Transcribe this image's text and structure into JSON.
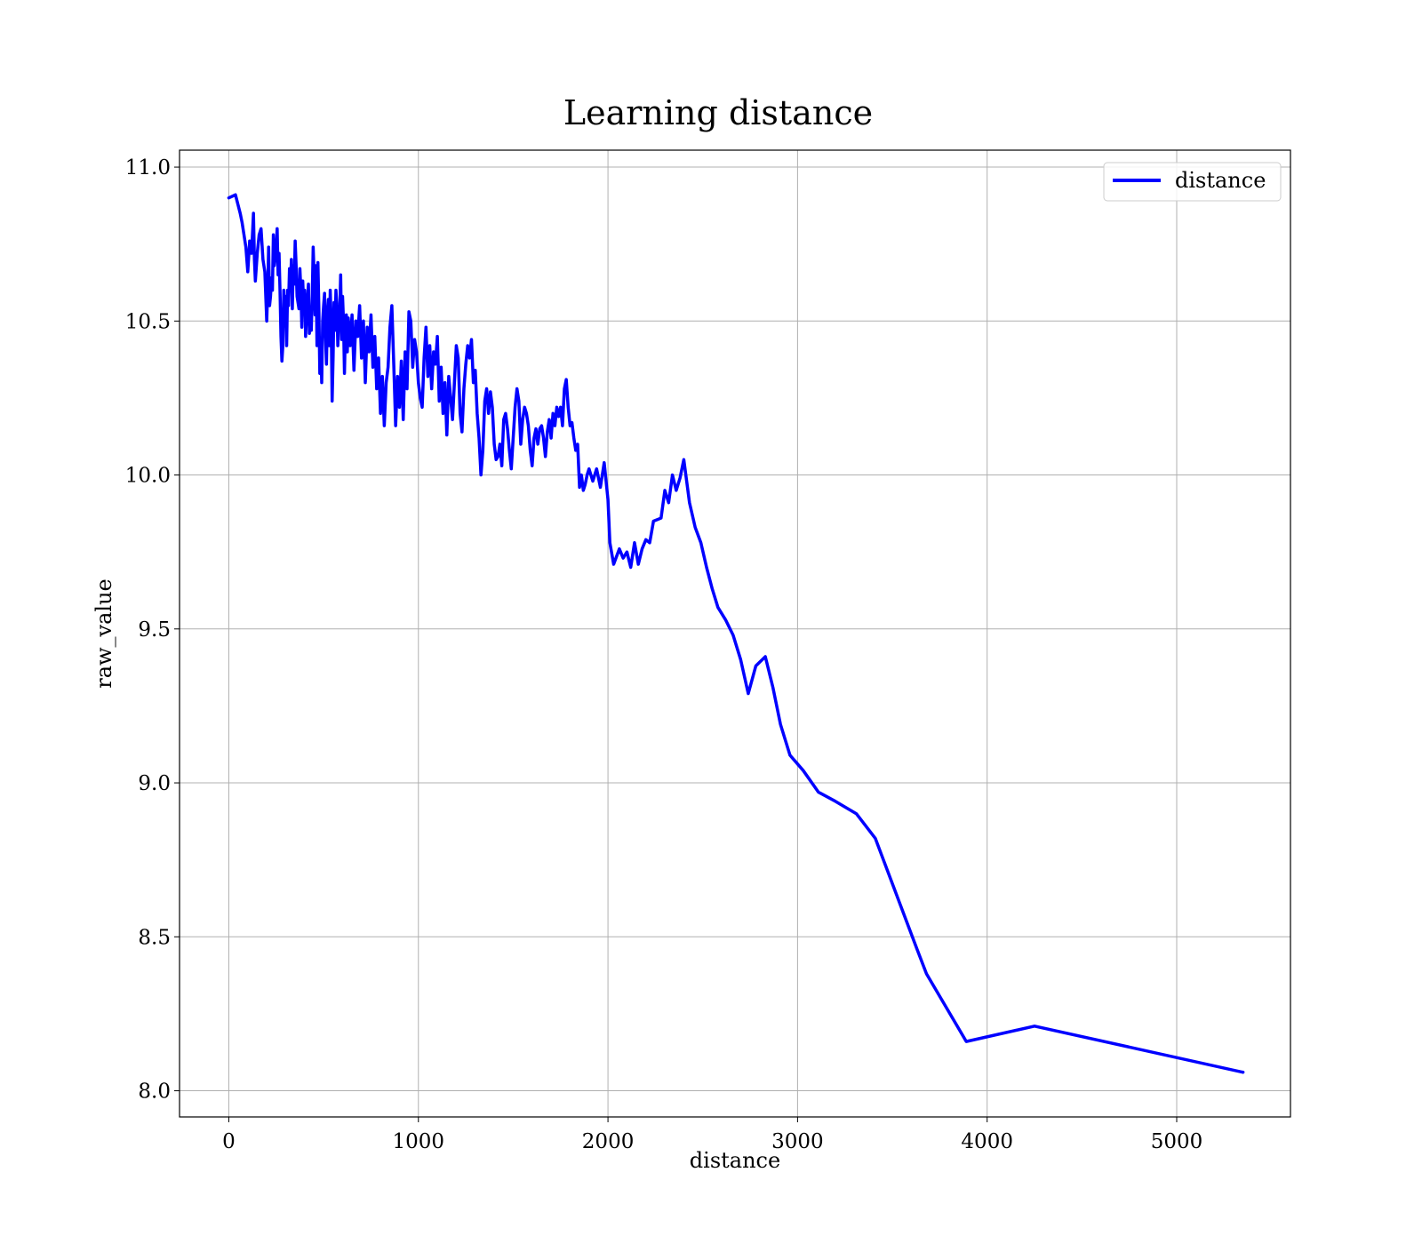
{
  "chart_data": {
    "type": "line",
    "title": "Learning distance",
    "xlabel": "distance",
    "ylabel": "raw_value",
    "xlim": [
      -260,
      5600
    ],
    "ylim": [
      7.915,
      11.055
    ],
    "xticks": [
      0,
      1000,
      2000,
      3000,
      4000,
      5000
    ],
    "xtick_labels": [
      "0",
      "1000",
      "2000",
      "3000",
      "4000",
      "5000"
    ],
    "yticks": [
      8.0,
      8.5,
      9.0,
      9.5,
      10.0,
      10.5,
      11.0
    ],
    "ytick_labels": [
      "8.0",
      "8.5",
      "9.0",
      "9.5",
      "10.0",
      "10.5",
      "11.0"
    ],
    "grid": true,
    "legend_position": "top-right",
    "series": [
      {
        "name": "distance",
        "color": "#0000ff",
        "x": [
          0,
          35,
          60,
          70,
          80,
          90,
          100,
          110,
          120,
          130,
          135,
          140,
          150,
          160,
          170,
          180,
          190,
          200,
          205,
          210,
          215,
          220,
          225,
          230,
          235,
          240,
          250,
          255,
          260,
          265,
          270,
          275,
          280,
          285,
          290,
          295,
          300,
          305,
          310,
          315,
          320,
          325,
          330,
          335,
          340,
          345,
          350,
          355,
          360,
          365,
          370,
          375,
          380,
          385,
          390,
          395,
          400,
          405,
          410,
          420,
          425,
          430,
          435,
          440,
          445,
          450,
          455,
          460,
          465,
          470,
          475,
          480,
          485,
          490,
          495,
          500,
          505,
          510,
          515,
          520,
          525,
          530,
          535,
          540,
          545,
          550,
          555,
          560,
          565,
          570,
          575,
          580,
          585,
          590,
          595,
          600,
          605,
          610,
          615,
          620,
          625,
          630,
          640,
          650,
          660,
          670,
          680,
          690,
          700,
          710,
          720,
          730,
          740,
          750,
          760,
          770,
          780,
          790,
          800,
          810,
          820,
          830,
          840,
          850,
          860,
          870,
          880,
          890,
          900,
          910,
          920,
          930,
          940,
          950,
          960,
          970,
          980,
          990,
          1000,
          1010,
          1020,
          1030,
          1040,
          1050,
          1060,
          1070,
          1080,
          1090,
          1100,
          1110,
          1120,
          1130,
          1140,
          1150,
          1160,
          1170,
          1180,
          1190,
          1200,
          1210,
          1220,
          1230,
          1240,
          1250,
          1260,
          1270,
          1280,
          1290,
          1300,
          1310,
          1320,
          1330,
          1340,
          1350,
          1360,
          1370,
          1380,
          1390,
          1400,
          1410,
          1420,
          1430,
          1440,
          1450,
          1460,
          1470,
          1480,
          1490,
          1500,
          1510,
          1520,
          1530,
          1540,
          1550,
          1560,
          1570,
          1580,
          1590,
          1600,
          1610,
          1620,
          1630,
          1640,
          1650,
          1660,
          1670,
          1680,
          1690,
          1700,
          1710,
          1720,
          1730,
          1740,
          1750,
          1760,
          1770,
          1780,
          1790,
          1800,
          1810,
          1820,
          1830,
          1840,
          1850,
          1860,
          1870,
          1880,
          1890,
          1900,
          1920,
          1940,
          1960,
          1980,
          2000,
          2010,
          2030,
          2060,
          2080,
          2100,
          2120,
          2140,
          2160,
          2180,
          2200,
          2220,
          2240,
          2280,
          2300,
          2320,
          2340,
          2360,
          2380,
          2400,
          2430,
          2460,
          2490,
          2520,
          2550,
          2580,
          2620,
          2660,
          2700,
          2740,
          2780,
          2830,
          2870,
          2910,
          2960,
          3030,
          3110,
          3200,
          3310,
          3410,
          3520,
          3630,
          3680,
          3890,
          4250,
          5350
        ],
        "y": [
          10.9,
          10.91,
          10.85,
          10.82,
          10.78,
          10.74,
          10.66,
          10.76,
          10.72,
          10.85,
          10.7,
          10.63,
          10.72,
          10.78,
          10.8,
          10.7,
          10.66,
          10.5,
          10.6,
          10.74,
          10.55,
          10.58,
          10.64,
          10.6,
          10.78,
          10.68,
          10.74,
          10.8,
          10.65,
          10.72,
          10.6,
          10.45,
          10.37,
          10.42,
          10.6,
          10.5,
          10.58,
          10.42,
          10.6,
          10.55,
          10.67,
          10.6,
          10.7,
          10.54,
          10.68,
          10.62,
          10.76,
          10.68,
          10.58,
          10.56,
          10.54,
          10.67,
          10.6,
          10.48,
          10.63,
          10.55,
          10.6,
          10.45,
          10.52,
          10.62,
          10.46,
          10.54,
          10.47,
          10.58,
          10.74,
          10.65,
          10.52,
          10.68,
          10.42,
          10.69,
          10.54,
          10.33,
          10.44,
          10.3,
          10.5,
          10.55,
          10.59,
          10.45,
          10.36,
          10.52,
          10.57,
          10.42,
          10.6,
          10.5,
          10.24,
          10.38,
          10.56,
          10.47,
          10.6,
          10.55,
          10.42,
          10.5,
          10.53,
          10.65,
          10.44,
          10.58,
          10.5,
          10.33,
          10.48,
          10.52,
          10.4,
          10.51,
          10.42,
          10.52,
          10.34,
          10.5,
          10.45,
          10.55,
          10.38,
          10.5,
          10.3,
          10.48,
          10.4,
          10.52,
          10.35,
          10.45,
          10.28,
          10.38,
          10.2,
          10.32,
          10.16,
          10.3,
          10.35,
          10.48,
          10.55,
          10.36,
          10.16,
          10.32,
          10.22,
          10.37,
          10.18,
          10.4,
          10.28,
          10.53,
          10.5,
          10.35,
          10.44,
          10.4,
          10.3,
          10.25,
          10.22,
          10.38,
          10.48,
          10.32,
          10.42,
          10.28,
          10.4,
          10.36,
          10.45,
          10.24,
          10.35,
          10.2,
          10.3,
          10.13,
          10.32,
          10.25,
          10.18,
          10.3,
          10.42,
          10.38,
          10.2,
          10.14,
          10.28,
          10.36,
          10.42,
          10.38,
          10.44,
          10.3,
          10.34,
          10.2,
          10.12,
          10.0,
          10.08,
          10.24,
          10.28,
          10.2,
          10.27,
          10.22,
          10.1,
          10.05,
          10.06,
          10.1,
          10.03,
          10.18,
          10.2,
          10.15,
          10.08,
          10.02,
          10.12,
          10.22,
          10.28,
          10.24,
          10.1,
          10.18,
          10.22,
          10.2,
          10.16,
          10.08,
          10.03,
          10.12,
          10.15,
          10.1,
          10.15,
          10.16,
          10.12,
          10.06,
          10.14,
          10.18,
          10.12,
          10.2,
          10.16,
          10.22,
          10.19,
          10.22,
          10.16,
          10.28,
          10.31,
          10.22,
          10.16,
          10.17,
          10.12,
          10.08,
          10.1,
          9.96,
          10.0,
          9.95,
          9.97,
          10.0,
          10.02,
          9.98,
          10.02,
          9.96,
          10.04,
          9.92,
          9.78,
          9.71,
          9.76,
          9.73,
          9.75,
          9.7,
          9.78,
          9.71,
          9.76,
          9.79,
          9.78,
          9.85,
          9.86,
          9.95,
          9.91,
          10.0,
          9.95,
          9.99,
          10.05,
          9.91,
          9.83,
          9.78,
          9.7,
          9.63,
          9.57,
          9.53,
          9.48,
          9.4,
          9.29,
          9.38,
          9.41,
          9.31,
          9.19,
          9.09,
          9.04,
          8.97,
          8.94,
          8.9,
          8.82,
          8.64,
          8.46,
          8.38,
          8.16,
          8.21,
          8.06
        ]
      }
    ]
  }
}
